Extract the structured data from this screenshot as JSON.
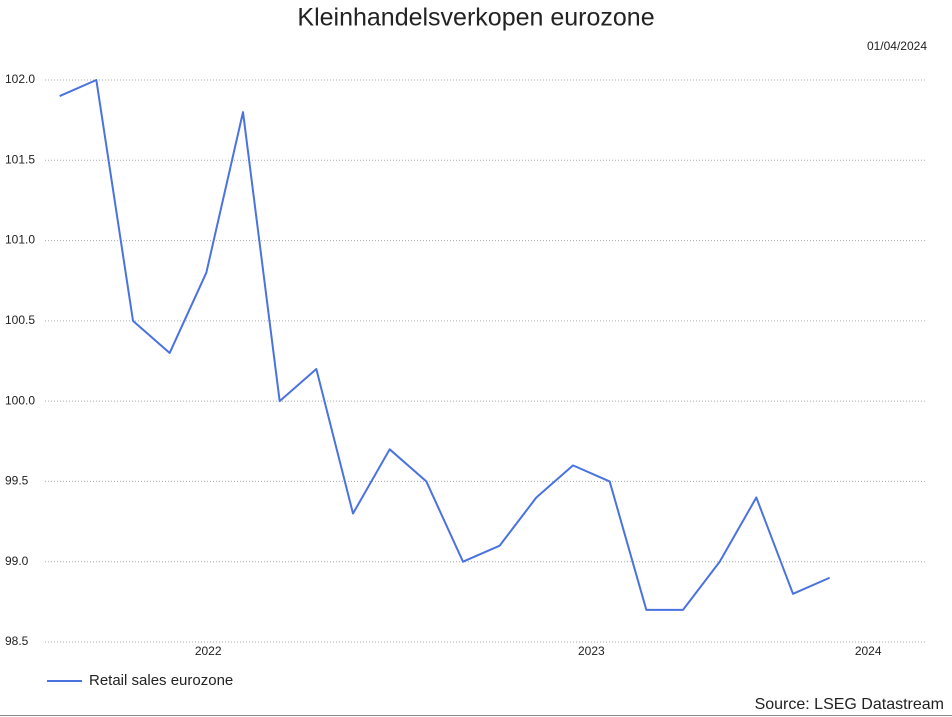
{
  "chart_data": {
    "type": "line",
    "title": "Kleinhandelsverkopen eurozone",
    "date": "01/04/2024",
    "source": "Source: LSEG Datastream",
    "x": [
      0,
      1,
      2,
      3,
      4,
      5,
      6,
      7,
      8,
      9,
      10,
      11,
      12,
      13,
      14,
      15,
      16,
      17,
      18,
      19,
      20,
      21
    ],
    "xlim": [
      -0.4,
      23.6
    ],
    "xticks": [
      {
        "value": 4.05,
        "label": "2022"
      },
      {
        "value": 14.5,
        "label": "2023"
      },
      {
        "value": 22.05,
        "label": "2024"
      }
    ],
    "series": [
      {
        "name": "Retail sales eurozone",
        "color": "#4a72e0",
        "values": [
          101.9,
          102.0,
          100.5,
          100.3,
          100.8,
          101.8,
          100.0,
          100.2,
          99.3,
          99.7,
          99.5,
          99.0,
          99.1,
          99.4,
          99.6,
          99.5,
          98.7,
          98.7,
          99.0,
          99.4,
          98.8,
          98.9
        ]
      }
    ],
    "ylim": [
      98.5,
      102.0
    ],
    "yticks": [
      98.5,
      {
        "value": 99,
        "label": "99.0"
      },
      99.5,
      {
        "value": 100,
        "label": "100.0"
      },
      100.5,
      {
        "value": 101,
        "label": "101.0"
      },
      101.5,
      {
        "value": 102,
        "label": "102.0"
      }
    ],
    "grid": true
  }
}
